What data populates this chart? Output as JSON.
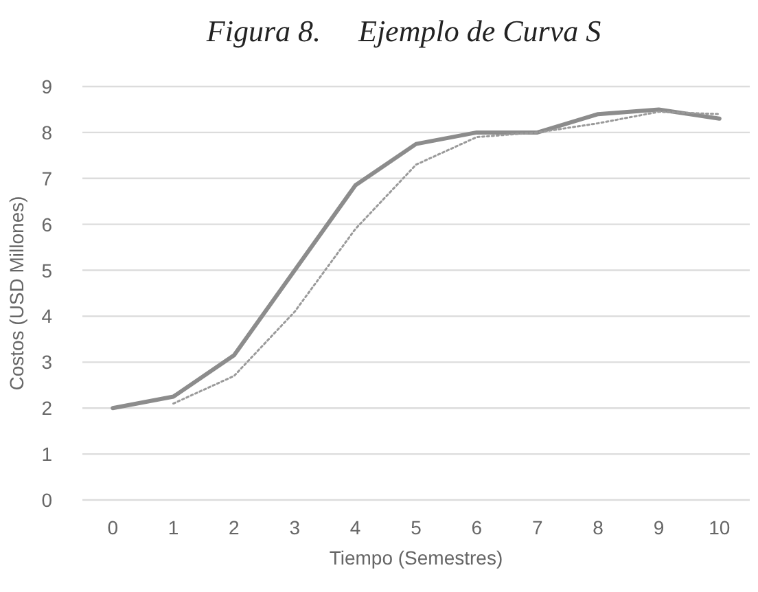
{
  "chart_data": {
    "type": "line",
    "title": "Figura 8.     Ejemplo de Curva S",
    "xlabel": "Tiempo (Semestres)",
    "ylabel": "Costos (USD Millones)",
    "categories": [
      "0",
      "1",
      "2",
      "3",
      "4",
      "5",
      "6",
      "7",
      "8",
      "9",
      "10"
    ],
    "series": [
      {
        "color": "#8c8c8c",
        "line_style": "solid",
        "values": [
          2,
          2.25,
          3.15,
          5,
          6.85,
          7.75,
          8,
          8,
          8.4,
          8.5,
          8.3
        ]
      },
      {
        "color": "#9a9a9a",
        "line_style": "dotted",
        "values": [
          null,
          2.1,
          2.7,
          4.1,
          5.9,
          7.3,
          7.9,
          8,
          8.2,
          8.45,
          8.4
        ]
      }
    ],
    "ylim": [
      0,
      9
    ],
    "yticks": [
      0,
      1,
      2,
      3,
      4,
      5,
      6,
      7,
      8,
      9
    ],
    "grid": "y",
    "marker": "none"
  }
}
